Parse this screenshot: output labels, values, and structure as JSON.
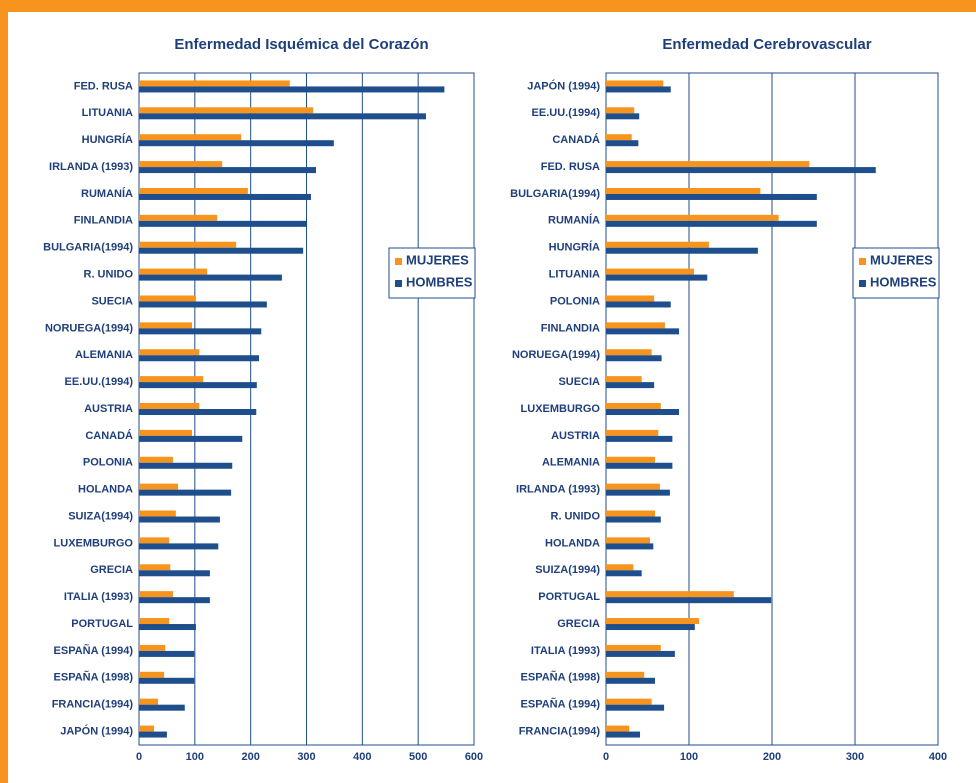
{
  "chart_data": [
    {
      "type": "bar",
      "orientation": "horizontal",
      "title": "Enfermedad Isquémica del Corazón",
      "categories": [
        "FED. RUSA",
        "LITUANIA",
        "HUNGRÍA",
        "IRLANDA (1993)",
        "RUMANÍA",
        "FINLANDIA",
        "BULGARIA(1994)",
        "R. UNIDO",
        "SUECIA",
        "NORUEGA(1994)",
        "ALEMANIA",
        "EE.UU.(1994)",
        "AUSTRIA",
        "CANADÁ",
        "POLONIA",
        "HOLANDA",
        "SUIZA(1994)",
        "LUXEMBURGO",
        "GRECIA",
        "ITALIA (1993)",
        "PORTUGAL",
        "ESPAÑA (1994)",
        "ESPAÑA (1998)",
        "FRANCIA(1994)",
        "JAPÓN (1994)"
      ],
      "series": [
        {
          "name": "MUJERES",
          "color": "#f7941d",
          "values": [
            270,
            312,
            183,
            149,
            195,
            140,
            174,
            122,
            102,
            95,
            108,
            115,
            108,
            95,
            61,
            70,
            66,
            54,
            56,
            61,
            54,
            47,
            45,
            34,
            27
          ]
        },
        {
          "name": "HOMBRES",
          "color": "#1f4e8c",
          "values": [
            547,
            514,
            349,
            317,
            308,
            301,
            294,
            256,
            229,
            219,
            215,
            211,
            210,
            185,
            167,
            165,
            145,
            142,
            127,
            127,
            102,
            99,
            99,
            82,
            50
          ]
        }
      ],
      "xlim": [
        0,
        600
      ],
      "xticks": [
        0,
        100,
        200,
        300,
        400,
        500,
        600
      ],
      "grid": true,
      "legend": "right"
    },
    {
      "type": "bar",
      "orientation": "horizontal",
      "title": "Enfermedad Cerebrovascular",
      "categories": [
        "JAPÓN (1994)",
        "EE.UU.(1994)",
        "CANADÁ",
        "FED. RUSA",
        "BULGARIA(1994)",
        "RUMANÍA",
        "HUNGRÍA",
        "LITUANIA",
        "POLONIA",
        "FINLANDIA",
        "NORUEGA(1994)",
        "SUECIA",
        "LUXEMBURGO",
        "AUSTRIA",
        "ALEMANIA",
        "IRLANDA (1993)",
        "R. UNIDO",
        "HOLANDA",
        "SUIZA(1994)",
        "PORTUGAL",
        "GRECIA",
        "ITALIA (1993)",
        "ESPAÑA (1998)",
        "ESPAÑA (1994)",
        "FRANCIA(1994)"
      ],
      "series": [
        {
          "name": "MUJERES",
          "color": "#f7941d",
          "values": [
            69,
            34,
            31,
            245,
            186,
            208,
            124,
            106,
            58,
            71,
            55,
            43,
            66,
            63,
            59,
            65,
            59,
            53,
            33,
            154,
            112,
            66,
            46,
            55,
            28
          ]
        },
        {
          "name": "HOMBRES",
          "color": "#1f4e8c",
          "values": [
            78,
            40,
            39,
            325,
            254,
            254,
            183,
            122,
            78,
            88,
            67,
            58,
            88,
            80,
            80,
            77,
            66,
            57,
            43,
            199,
            107,
            83,
            59,
            70,
            41
          ]
        }
      ],
      "xlim": [
        0,
        400
      ],
      "xticks": [
        0,
        100,
        200,
        300,
        400
      ],
      "grid": true,
      "legend": "right"
    }
  ]
}
